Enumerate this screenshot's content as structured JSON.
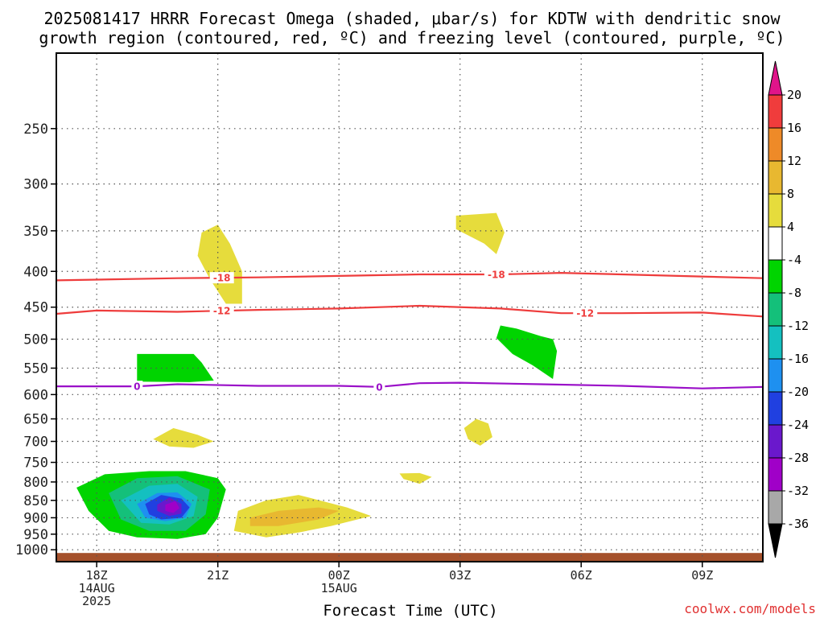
{
  "title_line1": "2025081417 HRRR Forecast Omega (shaded, μbar/s) for KDTW with dendritic snow",
  "title_line2": "growth region (contoured, red, ºC) and freezing level (contoured, purple, ºC)",
  "credit": "coolwx.com/models",
  "chart_data": {
    "type": "area",
    "title": "2025081417 HRRR Forecast Omega (shaded, μbar/s) for KDTW with dendritic snow growth region (contoured, red, ºC) and freezing level (contoured, purple, ºC)",
    "xlabel": "Forecast Time (UTC)",
    "ylabel": "",
    "x_range_hours": [
      -1.0,
      16.5
    ],
    "x_ticks": [
      {
        "hour": 0,
        "label": "18Z",
        "sub": [
          "14AUG",
          "2025"
        ]
      },
      {
        "hour": 3,
        "label": "21Z",
        "sub": []
      },
      {
        "hour": 6,
        "label": "00Z",
        "sub": [
          "15AUG"
        ]
      },
      {
        "hour": 9,
        "label": "03Z",
        "sub": []
      },
      {
        "hour": 12,
        "label": "06Z",
        "sub": []
      },
      {
        "hour": 15,
        "label": "09Z",
        "sub": []
      }
    ],
    "y_scale": "log",
    "y_range_hPa": [
      195,
      1040
    ],
    "y_ticks": [
      250,
      300,
      350,
      400,
      450,
      500,
      550,
      600,
      650,
      700,
      750,
      800,
      850,
      900,
      950,
      1000
    ],
    "grid": true,
    "colorbar": {
      "labels": [
        "20",
        "16",
        "12",
        "8",
        "4",
        "-4",
        "-8",
        "-12",
        "-16",
        "-20",
        "-24",
        "-28",
        "-32",
        "-36"
      ],
      "top_cap": "#e0148a",
      "bottom_cap": "#000000",
      "bins": [
        "#f03c3c",
        "#ee8a28",
        "#e8b830",
        "#e6dc3c",
        "#ffffff",
        "#00d400",
        "#14c07a",
        "#14c0c0",
        "#1e90f0",
        "#2040e0",
        "#6a18cc",
        "#a000c8",
        "#a8a8a8"
      ]
    },
    "contours": [
      {
        "name": "-18",
        "color": "#ee3c3c",
        "points": [
          [
            -1.0,
            412
          ],
          [
            2,
            409
          ],
          [
            4,
            408
          ],
          [
            6,
            406
          ],
          [
            8,
            404
          ],
          [
            10,
            404
          ],
          [
            11.5,
            402
          ],
          [
            13,
            404
          ],
          [
            16.5,
            409
          ]
        ],
        "label_hours": [
          3.1,
          9.9
        ]
      },
      {
        "name": "-12",
        "color": "#ee3c3c",
        "points": [
          [
            -1.0,
            460
          ],
          [
            0,
            455
          ],
          [
            2,
            457
          ],
          [
            4,
            454
          ],
          [
            6,
            452
          ],
          [
            8,
            448
          ],
          [
            10,
            452
          ],
          [
            11.5,
            459
          ],
          [
            13,
            459
          ],
          [
            15,
            458
          ],
          [
            16.5,
            464
          ]
        ],
        "label_hours": [
          3.1,
          12.1
        ]
      },
      {
        "name": "0",
        "color": "#9a10c8",
        "points": [
          [
            -1.0,
            584
          ],
          [
            1,
            584
          ],
          [
            2,
            580
          ],
          [
            4,
            583
          ],
          [
            6,
            583
          ],
          [
            7,
            585
          ],
          [
            8,
            578
          ],
          [
            9,
            577
          ],
          [
            11,
            580
          ],
          [
            13,
            583
          ],
          [
            15,
            588
          ],
          [
            16.5,
            585
          ]
        ],
        "label_hours": [
          1.0,
          7.0
        ]
      }
    ],
    "regions": [
      {
        "value": 4,
        "color": "#e6dc3c",
        "points": [
          [
            2.6,
            352
          ],
          [
            3.0,
            343
          ],
          [
            3.3,
            365
          ],
          [
            3.6,
            400
          ],
          [
            3.6,
            445
          ],
          [
            3.2,
            445
          ],
          [
            2.8,
            410
          ],
          [
            2.5,
            380
          ]
        ]
      },
      {
        "value": 4,
        "color": "#e6dc3c",
        "points": [
          [
            8.9,
            333
          ],
          [
            9.9,
            330
          ],
          [
            10.1,
            352
          ],
          [
            9.9,
            378
          ],
          [
            9.6,
            365
          ],
          [
            8.9,
            348
          ]
        ]
      },
      {
        "value": -4,
        "color": "#00d400",
        "points": [
          [
            10.0,
            478
          ],
          [
            10.4,
            483
          ],
          [
            11.0,
            495
          ],
          [
            11.3,
            500
          ],
          [
            11.4,
            520
          ],
          [
            11.3,
            570
          ],
          [
            10.8,
            545
          ],
          [
            10.3,
            525
          ],
          [
            9.9,
            498
          ]
        ]
      },
      {
        "value": -4,
        "color": "#00d400",
        "points": [
          [
            1.0,
            525
          ],
          [
            2.4,
            525
          ],
          [
            2.6,
            540
          ],
          [
            2.9,
            573
          ],
          [
            2.3,
            576
          ],
          [
            1.0,
            575
          ]
        ]
      },
      {
        "value": 4,
        "color": "#e6dc3c",
        "points": [
          [
            9.4,
            650
          ],
          [
            9.7,
            660
          ],
          [
            9.8,
            690
          ],
          [
            9.5,
            710
          ],
          [
            9.2,
            695
          ],
          [
            9.1,
            670
          ]
        ]
      },
      {
        "value": 4,
        "color": "#e6dc3c",
        "points": [
          [
            1.4,
            695
          ],
          [
            1.9,
            670
          ],
          [
            2.5,
            685
          ],
          [
            2.9,
            700
          ],
          [
            2.4,
            715
          ],
          [
            1.8,
            712
          ]
        ]
      },
      {
        "value": 4,
        "color": "#e6dc3c",
        "points": [
          [
            7.5,
            778
          ],
          [
            8.0,
            777
          ],
          [
            8.3,
            787
          ],
          [
            8.0,
            805
          ],
          [
            7.6,
            792
          ]
        ]
      },
      {
        "value": 4,
        "color": "#e6dc3c",
        "points": [
          [
            3.5,
            880
          ],
          [
            4.2,
            850
          ],
          [
            5.0,
            835
          ],
          [
            6.2,
            870
          ],
          [
            6.8,
            895
          ],
          [
            5.8,
            925
          ],
          [
            5.0,
            945
          ],
          [
            4.2,
            960
          ],
          [
            3.4,
            940
          ]
        ]
      },
      {
        "value": 8,
        "color": "#e8b830",
        "points": [
          [
            3.8,
            900
          ],
          [
            4.5,
            880
          ],
          [
            5.5,
            870
          ],
          [
            6.0,
            880
          ],
          [
            5.5,
            905
          ],
          [
            4.5,
            925
          ],
          [
            3.8,
            925
          ]
        ]
      },
      {
        "value": -4,
        "color": "#00d400",
        "points": [
          [
            -0.5,
            815
          ],
          [
            0.2,
            780
          ],
          [
            1.3,
            772
          ],
          [
            2.2,
            772
          ],
          [
            3.0,
            790
          ],
          [
            3.2,
            820
          ],
          [
            3.0,
            900
          ],
          [
            2.7,
            950
          ],
          [
            2.0,
            965
          ],
          [
            1.0,
            960
          ],
          [
            0.3,
            940
          ],
          [
            -0.2,
            880
          ]
        ]
      },
      {
        "value": -8,
        "color": "#14c07a",
        "points": [
          [
            0.3,
            830
          ],
          [
            1.0,
            790
          ],
          [
            2.0,
            785
          ],
          [
            2.8,
            820
          ],
          [
            2.7,
            890
          ],
          [
            2.2,
            940
          ],
          [
            1.3,
            940
          ],
          [
            0.6,
            905
          ]
        ]
      },
      {
        "value": -12,
        "color": "#14c0c0",
        "points": [
          [
            0.6,
            850
          ],
          [
            1.3,
            810
          ],
          [
            2.0,
            805
          ],
          [
            2.5,
            840
          ],
          [
            2.4,
            895
          ],
          [
            1.8,
            920
          ],
          [
            1.1,
            915
          ]
        ]
      },
      {
        "value": -16,
        "color": "#1e90f0",
        "points": [
          [
            1.0,
            860
          ],
          [
            1.5,
            830
          ],
          [
            2.0,
            828
          ],
          [
            2.35,
            860
          ],
          [
            2.2,
            900
          ],
          [
            1.7,
            910
          ],
          [
            1.2,
            900
          ]
        ]
      },
      {
        "value": -20,
        "color": "#2040e0",
        "points": [
          [
            1.2,
            860
          ],
          [
            1.6,
            835
          ],
          [
            2.1,
            845
          ],
          [
            2.3,
            870
          ],
          [
            2.1,
            900
          ],
          [
            1.6,
            905
          ],
          [
            1.3,
            890
          ]
        ]
      },
      {
        "value": -24,
        "color": "#6a18cc",
        "points": [
          [
            1.5,
            862
          ],
          [
            1.8,
            842
          ],
          [
            2.1,
            860
          ],
          [
            2.1,
            888
          ],
          [
            1.8,
            895
          ],
          [
            1.5,
            880
          ]
        ]
      },
      {
        "value": -28,
        "color": "#a000c8",
        "points": [
          [
            1.7,
            862
          ],
          [
            1.95,
            852
          ],
          [
            2.05,
            872
          ],
          [
            1.9,
            886
          ],
          [
            1.7,
            880
          ]
        ]
      }
    ],
    "ground": {
      "color": "#a5512b",
      "top_hPa": 1000
    }
  }
}
